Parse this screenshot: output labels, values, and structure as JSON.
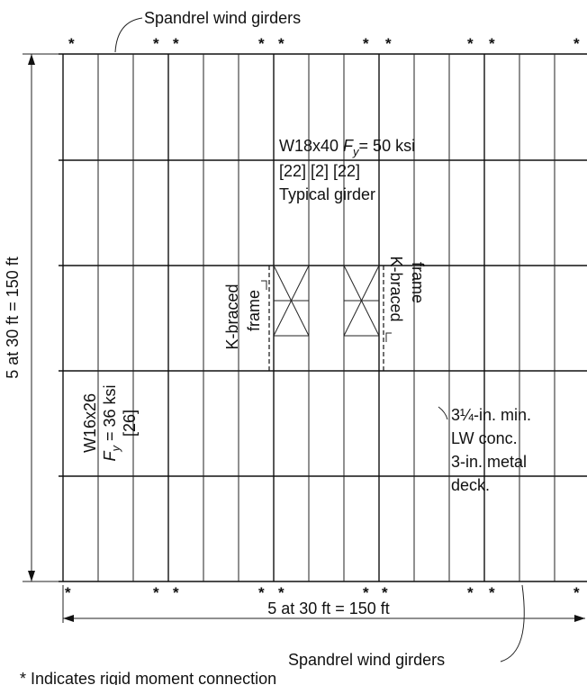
{
  "labels": {
    "spandrel_top": "Spandrel wind girders",
    "spandrel_bottom": "Spandrel wind girders",
    "girder_section": "W18x40 ",
    "girder_fy_symbol": "F",
    "girder_fy_sub": "y",
    "girder_fy_value": "= 50 ksi",
    "girder_bracket": "[22] [2] [22]",
    "girder_typical": "Typical girder",
    "vertical_dim": "5 at 30 ft = 150 ft",
    "horizontal_dim": "5 at 30 ft = 150 ft",
    "kbraced_left_1": "K-braced",
    "kbraced_left_2": "frame",
    "kbraced_right_1": "K-braced",
    "kbraced_right_2": "frame",
    "beam_section": "W16x26",
    "beam_fy_symbol": "F",
    "beam_fy_sub": "y",
    "beam_fy_value": " = 36 ksi",
    "beam_bracket": "[26]",
    "deck_1": "3¼-in. min.",
    "deck_2": "LW conc.",
    "deck_3": "3-in. metal",
    "deck_4": "deck.",
    "footnote": "* Indicates rigid moment connection",
    "star": "*"
  }
}
